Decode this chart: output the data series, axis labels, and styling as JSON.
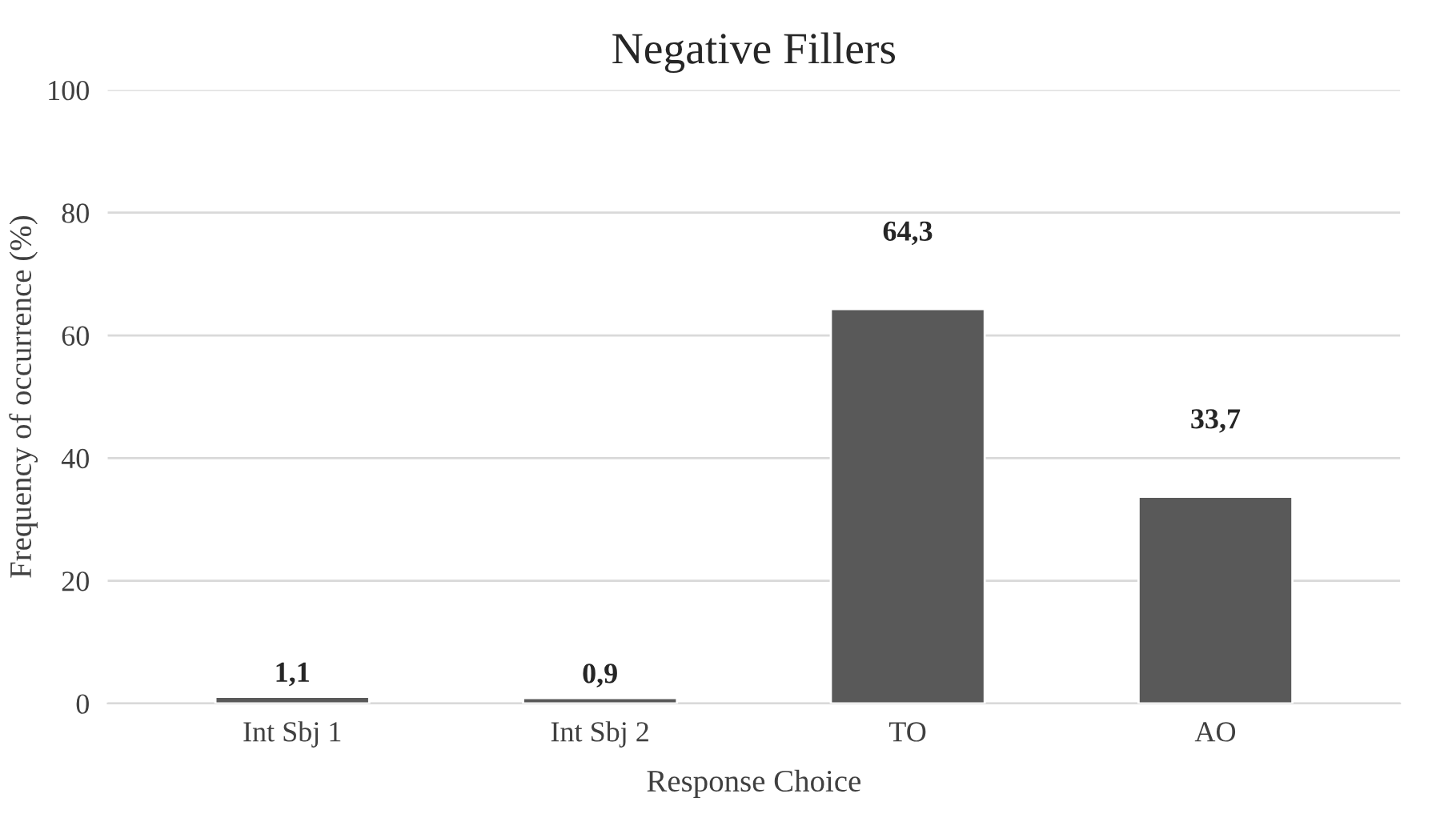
{
  "chart_data": {
    "type": "bar",
    "title": "Negative Fillers",
    "xlabel": "Response Choice",
    "ylabel": "Frequency of occurrence (%)",
    "categories": [
      "Int Sbj 1",
      "Int Sbj 2",
      "TO",
      "AO"
    ],
    "values": [
      1.1,
      0.9,
      64.3,
      33.7
    ],
    "value_labels": [
      "1,1",
      "0,9",
      "64,3",
      "33,7"
    ],
    "color": "#595959",
    "ylim": [
      0,
      100
    ],
    "yticks": [
      0,
      20,
      40,
      60,
      80,
      100
    ],
    "grid": "y",
    "legend": false
  }
}
